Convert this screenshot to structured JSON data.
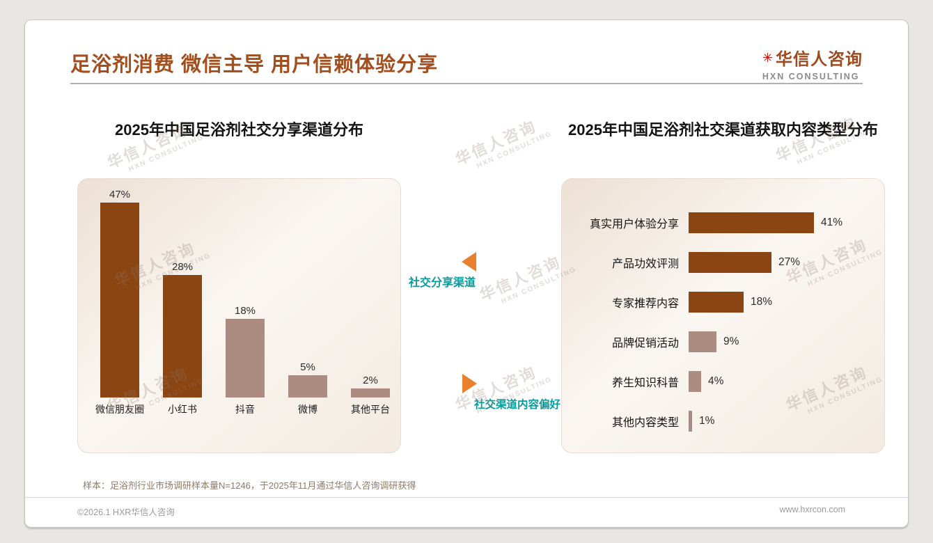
{
  "page": {
    "title": "足浴剂消费 微信主导 用户信赖体验分享",
    "sample_note": "样本：足浴剂行业市场调研样本量N=1246，于2025年11月通过华信人咨询调研获得",
    "footer_left": "©2026.1 HXR华信人咨询",
    "footer_right": "www.hxrcon.com"
  },
  "logo": {
    "mark": "✳",
    "cn": "华信人咨询",
    "en": "HXN CONSULTING"
  },
  "watermark": {
    "cn": "华信人咨询",
    "en": "HXN CONSULTING"
  },
  "annotations": {
    "share_channel_label": "社交分享渠道",
    "content_pref_label": "社交渠道内容偏好"
  },
  "colors": {
    "title": "#A24E1E",
    "bar_dark": "#8B4513",
    "bar_light": "#AC8C80",
    "teal": "#089B9B",
    "orange": "#E8802E"
  },
  "chart_data": [
    {
      "type": "bar",
      "orientation": "vertical",
      "title": "2025年中国足浴剂社交分享渠道分布",
      "categories": [
        "微信朋友圈",
        "小红书",
        "抖音",
        "微博",
        "其他平台"
      ],
      "values": [
        47,
        28,
        18,
        5,
        2
      ],
      "unit": "%",
      "ylim": [
        0,
        50
      ],
      "bar_palette": [
        "dark",
        "dark",
        "light",
        "light",
        "light"
      ],
      "grid": false,
      "legend": false
    },
    {
      "type": "bar",
      "orientation": "horizontal",
      "title": "2025年中国足浴剂社交渠道获取内容类型分布",
      "categories": [
        "真实用户体验分享",
        "产品功效评测",
        "专家推荐内容",
        "品牌促销活动",
        "养生知识科普",
        "其他内容类型"
      ],
      "values": [
        41,
        27,
        18,
        9,
        4,
        1
      ],
      "unit": "%",
      "xlim": [
        0,
        45
      ],
      "bar_palette": [
        "dark",
        "dark",
        "dark",
        "light",
        "light",
        "light"
      ],
      "grid": false,
      "legend": false
    }
  ]
}
